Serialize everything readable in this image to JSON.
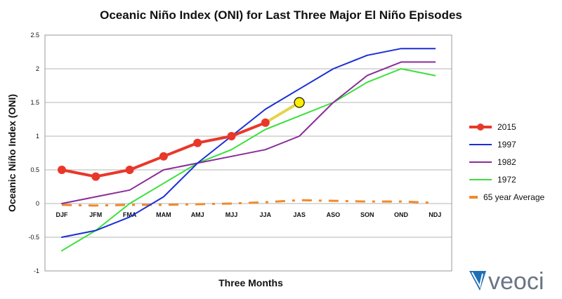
{
  "chart_data": {
    "type": "line",
    "title": "Oceanic Niño Index (ONI) for Last Three Major El Niño Episodes",
    "xlabel": "Three Months",
    "ylabel": "Oceanic Niño Index (ONI)",
    "categories": [
      "DJF",
      "JFM",
      "FMA",
      "MAM",
      "AMJ",
      "MJJ",
      "JJA",
      "JAS",
      "ASO",
      "SON",
      "OND",
      "NDJ"
    ],
    "yticks": [
      "2.5",
      "2",
      "1.5",
      "1",
      "0.5",
      "0",
      "-0.5",
      "-1"
    ],
    "ylim": [
      -1,
      2.5
    ],
    "legend_position": "right",
    "grid": true,
    "series": [
      {
        "name": "2015",
        "color": "#e8382a",
        "values": [
          0.5,
          0.4,
          0.5,
          0.7,
          0.9,
          1.0,
          1.2,
          null,
          null,
          null,
          null,
          null
        ],
        "markers": true
      },
      {
        "name": "1997",
        "color": "#1b2ed6",
        "values": [
          -0.5,
          -0.4,
          -0.2,
          0.1,
          0.6,
          1.0,
          1.4,
          1.7,
          2.0,
          2.2,
          2.3,
          2.3
        ]
      },
      {
        "name": "1982",
        "color": "#8a2d9a",
        "values": [
          0.0,
          0.1,
          0.2,
          0.5,
          0.6,
          0.7,
          0.8,
          1.0,
          1.5,
          1.9,
          2.1,
          2.1
        ]
      },
      {
        "name": "1972",
        "color": "#3be03b",
        "values": [
          -0.7,
          -0.4,
          0.0,
          0.3,
          0.6,
          0.8,
          1.1,
          1.3,
          1.5,
          1.8,
          2.0,
          1.9
        ]
      },
      {
        "name": "65 year Average",
        "color": "#f08a28",
        "dashed": true,
        "values": [
          -0.02,
          -0.03,
          -0.02,
          -0.02,
          -0.01,
          0.0,
          0.02,
          0.05,
          0.04,
          0.03,
          0.03,
          0.01
        ]
      }
    ],
    "forecast": {
      "color": "#e6d44a",
      "from_x": "JJA",
      "from_y": 1.2,
      "to_x": "JAS",
      "to_y": 1.5,
      "marker_color": "#ffee00"
    }
  },
  "logo": {
    "text": "veoci"
  }
}
